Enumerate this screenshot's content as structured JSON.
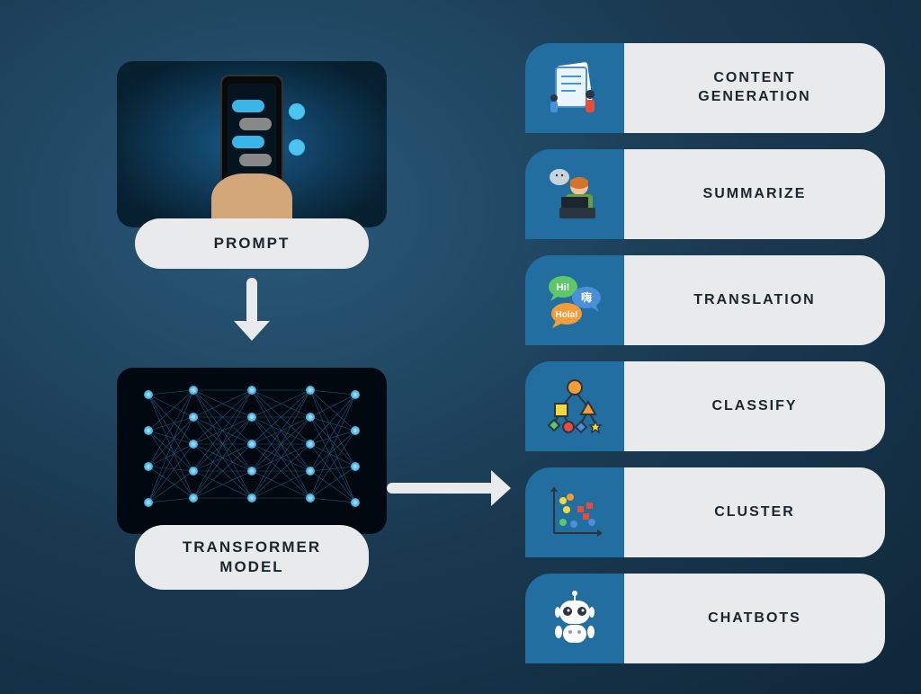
{
  "diagram": {
    "type": "infographic",
    "background_gradient": [
      "#2a5a7a",
      "#1a3a52",
      "#0f2638"
    ],
    "pill_bg": "#e8eaec",
    "pill_text_color": "#1a2530",
    "accent_blue": "#236ea0",
    "arrow_color": "#e8eaec",
    "font_family": "Arial",
    "label_fontsize": 17,
    "task_label_fontsize": 16,
    "letter_spacing": 2
  },
  "left": {
    "prompt_label": "PROMPT",
    "transformer_label": "TRANSFORMER\nMODEL",
    "prompt_image_desc": "Hand holding smartphone with chat messages",
    "nn_image_desc": "Neural network with glowing nodes and connections",
    "nn_colors": {
      "node": "#80d8ff",
      "line": "#2a7aa8",
      "bg": "#020810"
    }
  },
  "arrows": {
    "down": {
      "from": "PROMPT",
      "to": "TRANSFORMER MODEL"
    },
    "right": {
      "from": "TRANSFORMER MODEL",
      "to": "tasks"
    }
  },
  "tasks": [
    {
      "label": "CONTENT\nGENERATION",
      "icon": "document-people-icon"
    },
    {
      "label": "SUMMARIZE",
      "icon": "person-laptop-icon"
    },
    {
      "label": "TRANSLATION",
      "icon": "speech-bubbles-icon",
      "bubbles": [
        "Hi!",
        "嗨",
        "Hola!"
      ]
    },
    {
      "label": "CLASSIFY",
      "icon": "tree-shapes-icon"
    },
    {
      "label": "CLUSTER",
      "icon": "scatter-plot-icon"
    },
    {
      "label": "CHATBOTS",
      "icon": "robot-icon"
    }
  ],
  "icon_colors": {
    "green": "#5fc767",
    "orange": "#f29c3a",
    "red": "#e84c3d",
    "yellow": "#f5d742",
    "blue": "#4a90d9",
    "white": "#ffffff",
    "skin": "#f2c39a",
    "dark": "#2a3540"
  }
}
